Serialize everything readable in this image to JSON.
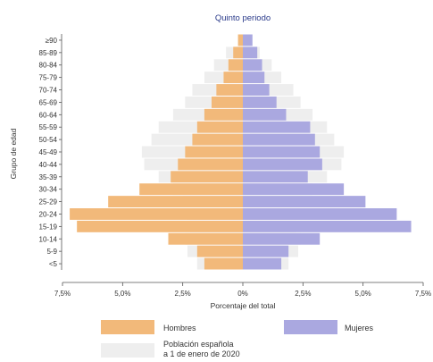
{
  "chart_data": {
    "type": "bar",
    "orientation": "horizontal",
    "subtype": "population-pyramid",
    "title": "Quinto periodo",
    "xlabel": "Porcentaje del total",
    "ylabel": "Grupo de edad",
    "xlim": [
      -7.5,
      7.5
    ],
    "xticks": [
      "7,5%",
      "5,0%",
      "2,5%",
      "0%",
      "2,5%",
      "5,0%",
      "7,5%"
    ],
    "categories": [
      "<5",
      "5-9",
      "10-14",
      "15-19",
      "20-24",
      "25-29",
      "30-34",
      "35-39",
      "40-44",
      "45-49",
      "50-54",
      "55-59",
      "60-64",
      "65-69",
      "70-74",
      "75-79",
      "80-84",
      "85-89",
      "≥90"
    ],
    "series": [
      {
        "name": "Hombres",
        "color": "#f2b97a",
        "side": "left",
        "values": [
          1.6,
          1.9,
          3.1,
          6.9,
          7.2,
          5.6,
          4.3,
          3.0,
          2.7,
          2.4,
          2.1,
          1.9,
          1.6,
          1.3,
          1.1,
          0.8,
          0.6,
          0.4,
          0.2
        ]
      },
      {
        "name": "Mujeres",
        "color": "#aaa8e0",
        "side": "right",
        "values": [
          1.6,
          1.9,
          3.2,
          7.0,
          6.4,
          5.1,
          4.2,
          2.7,
          3.3,
          3.2,
          3.0,
          2.8,
          1.8,
          1.4,
          1.1,
          0.9,
          0.8,
          0.6,
          0.4
        ]
      },
      {
        "name": "Población española a 1 de enero de 2020",
        "color": "#eeeeee",
        "side": "both",
        "values": [
          1.9,
          2.3,
          2.4,
          2.2,
          2.3,
          2.5,
          2.9,
          3.5,
          4.1,
          4.2,
          3.8,
          3.5,
          2.9,
          2.4,
          2.1,
          1.6,
          1.2,
          0.7,
          0.2
        ]
      }
    ],
    "legend": {
      "placement": "bottom",
      "items": [
        {
          "label": "Hombres",
          "color": "#f2b97a"
        },
        {
          "label": "Mujeres",
          "color": "#aaa8e0"
        },
        {
          "label_lines": [
            "Población española",
            "a 1 de enero de 2020"
          ],
          "color": "#eeeeee"
        }
      ]
    },
    "grid": false
  }
}
